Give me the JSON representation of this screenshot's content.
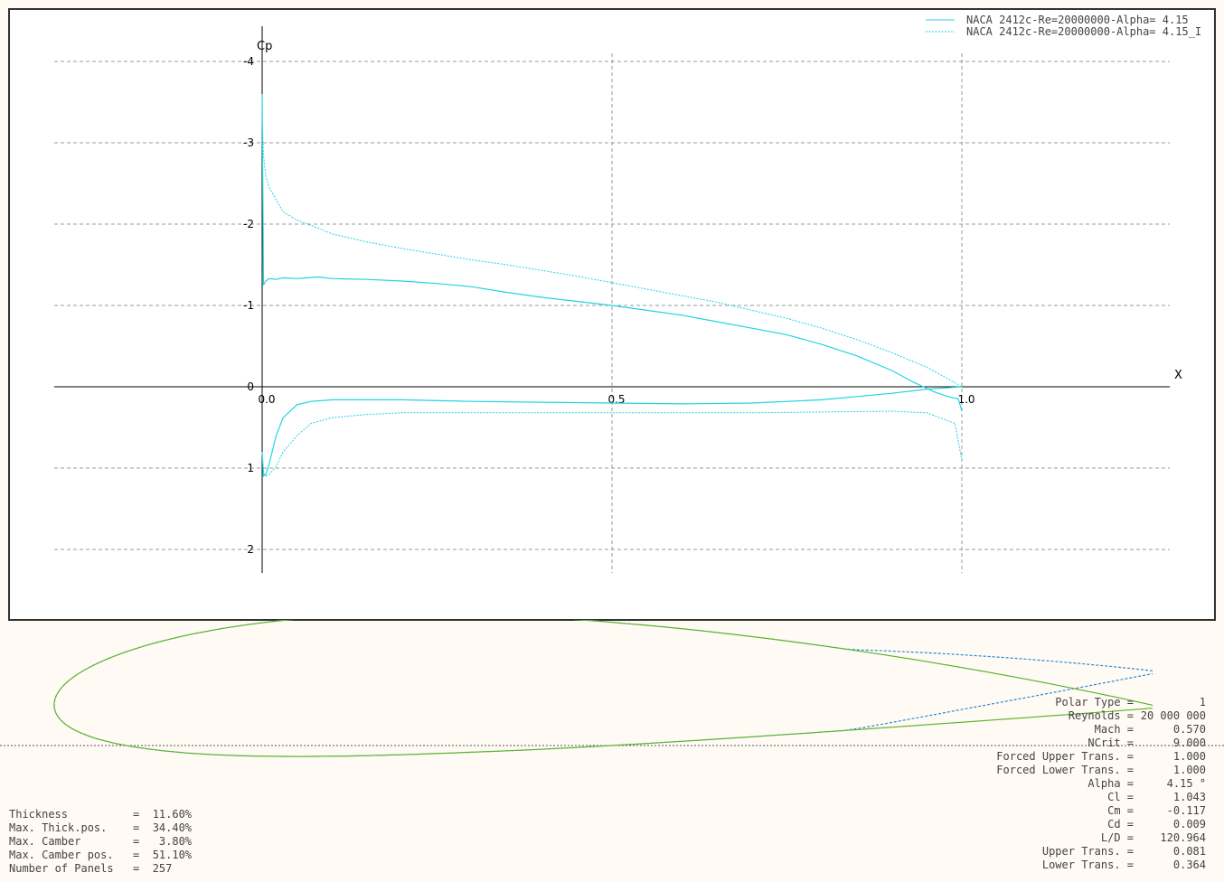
{
  "chart_data": {
    "type": "line",
    "xlabel": "X",
    "ylabel": "Cp",
    "xlim": [
      -0.3,
      1.3
    ],
    "ylim": [
      2.2,
      -4.3
    ],
    "y_inverted": true,
    "grid": true,
    "x_ticks": [
      0,
      0.5,
      1
    ],
    "x_tick_labels": [
      "0.0",
      "0.5",
      "1.0"
    ],
    "y_ticks": [
      -4,
      -3,
      -2,
      -1,
      0,
      1,
      2
    ],
    "y_tick_labels": [
      "-4",
      "-3",
      "-2",
      "-1",
      "0",
      "1",
      "2"
    ],
    "legend_position": "top-right",
    "series": [
      {
        "name": "NACA 2412c-Re=20000000-Alpha= 4.15",
        "color": "#22d3e0",
        "dash": "solid",
        "upper": {
          "x": [
            0,
            0.002,
            0.005,
            0.01,
            0.02,
            0.03,
            0.05,
            0.08,
            0.1,
            0.15,
            0.2,
            0.25,
            0.3,
            0.35,
            0.4,
            0.45,
            0.5,
            0.55,
            0.6,
            0.65,
            0.7,
            0.75,
            0.8,
            0.85,
            0.9,
            0.93,
            0.96,
            0.98,
            0.995,
            1.0
          ],
          "y": [
            -3.6,
            -1.25,
            -1.3,
            -1.33,
            -1.32,
            -1.34,
            -1.33,
            -1.35,
            -1.33,
            -1.32,
            -1.3,
            -1.27,
            -1.23,
            -1.16,
            -1.1,
            -1.05,
            -1.0,
            -0.94,
            -0.88,
            -0.8,
            -0.72,
            -0.64,
            -0.52,
            -0.38,
            -0.2,
            -0.06,
            0.06,
            0.12,
            0.15,
            0.3
          ]
        },
        "lower": {
          "x": [
            0,
            0.002,
            0.005,
            0.01,
            0.02,
            0.03,
            0.05,
            0.07,
            0.1,
            0.15,
            0.2,
            0.3,
            0.4,
            0.5,
            0.6,
            0.7,
            0.8,
            0.85,
            0.9,
            0.95,
            1.0
          ],
          "y": [
            0.8,
            1.1,
            1.08,
            0.95,
            0.6,
            0.38,
            0.22,
            0.18,
            0.16,
            0.16,
            0.16,
            0.18,
            0.19,
            0.2,
            0.21,
            0.2,
            0.16,
            0.12,
            0.08,
            0.03,
            0.0
          ]
        }
      },
      {
        "name": "NACA 2412c-Re=20000000-Alpha= 4.15_I",
        "color": "#22d3e0",
        "dash": "dashed",
        "upper": {
          "x": [
            0,
            0.002,
            0.005,
            0.01,
            0.02,
            0.03,
            0.05,
            0.08,
            0.1,
            0.15,
            0.2,
            0.25,
            0.3,
            0.35,
            0.4,
            0.45,
            0.5,
            0.55,
            0.6,
            0.65,
            0.7,
            0.75,
            0.8,
            0.85,
            0.9,
            0.95,
            0.98,
            1.0
          ],
          "y": [
            -3.3,
            -2.85,
            -2.6,
            -2.45,
            -2.3,
            -2.15,
            -2.05,
            -1.95,
            -1.88,
            -1.78,
            -1.7,
            -1.63,
            -1.56,
            -1.5,
            -1.43,
            -1.36,
            -1.28,
            -1.2,
            -1.12,
            -1.04,
            -0.94,
            -0.84,
            -0.72,
            -0.58,
            -0.42,
            -0.24,
            -0.1,
            0.0
          ]
        },
        "lower": {
          "x": [
            0,
            0.002,
            0.005,
            0.01,
            0.02,
            0.03,
            0.05,
            0.07,
            0.1,
            0.15,
            0.2,
            0.3,
            0.4,
            0.5,
            0.6,
            0.7,
            0.8,
            0.9,
            0.95,
            0.99,
            1.0
          ],
          "y": [
            0.8,
            1.05,
            1.1,
            1.08,
            0.98,
            0.8,
            0.6,
            0.45,
            0.38,
            0.34,
            0.32,
            0.32,
            0.32,
            0.32,
            0.32,
            0.32,
            0.31,
            0.3,
            0.32,
            0.45,
            0.9
          ]
        }
      }
    ]
  },
  "airfoil": {
    "name": "NACA 2412",
    "outline_color": "#4caf50",
    "outline_secondary": "#d4e600",
    "deflected_color": "#2a8ad4",
    "properties": [
      {
        "label": "Thickness",
        "value": "11.60%"
      },
      {
        "label": "Max. Thick.pos.",
        "value": "34.40%"
      },
      {
        "label": "Max. Camber",
        "value": " 3.80%"
      },
      {
        "label": "Max. Camber pos.",
        "value": "51.10%"
      },
      {
        "label": "Number of Panels",
        "value": "257"
      }
    ]
  },
  "polar": [
    {
      "label": "Polar Type =",
      "value": "1"
    },
    {
      "label": "Reynolds =",
      "value": "20 000 000"
    },
    {
      "label": "Mach =",
      "value": "0.570"
    },
    {
      "label": "NCrit =",
      "value": "9.000"
    },
    {
      "label": "Forced Upper Trans. =",
      "value": "1.000"
    },
    {
      "label": "Forced Lower Trans. =",
      "value": "1.000"
    },
    {
      "label": "Alpha =",
      "value": "4.15 °"
    },
    {
      "label": "Cl =",
      "value": "1.043"
    },
    {
      "label": "Cm =",
      "value": "-0.117"
    },
    {
      "label": "Cd =",
      "value": "0.009"
    },
    {
      "label": "L/D =",
      "value": "120.964"
    },
    {
      "label": "Upper Trans. =",
      "value": "0.081"
    },
    {
      "label": "Lower Trans. =",
      "value": "0.364"
    }
  ]
}
